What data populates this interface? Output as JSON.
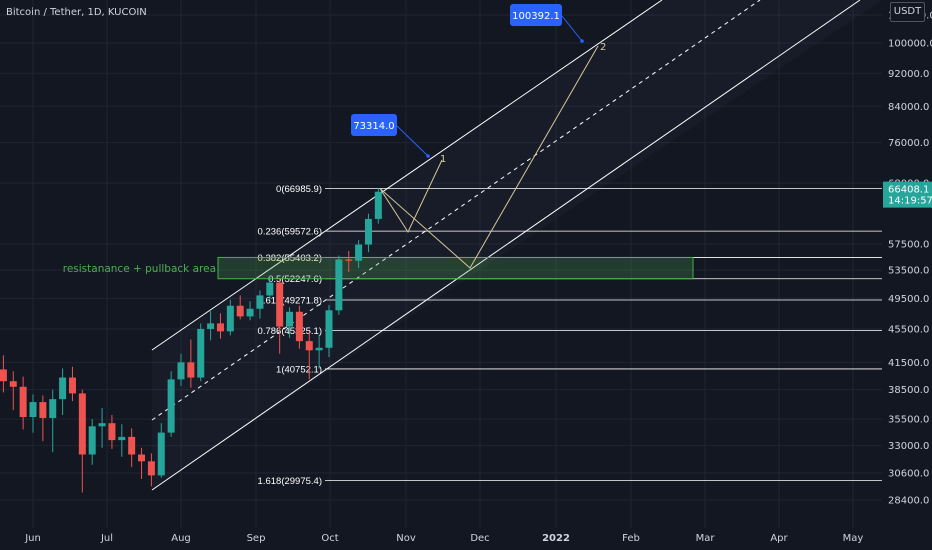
{
  "window": {
    "title": "Bitcoin / Tether, 1D, KUCOIN",
    "currency": "USDT"
  },
  "colors": {
    "background": "#131722",
    "bull": "#26a69a",
    "bear": "#ef5350",
    "channel": "#ffffff",
    "path": "#d4c99a",
    "zone": "#4caf50",
    "callout": "#2962ff"
  },
  "chart_data": {
    "type": "candlestick",
    "x_ticks": [
      "Jun",
      "Jul",
      "Aug",
      "Sep",
      "Oct",
      "Nov",
      "Dec",
      "2022",
      "Feb",
      "Mar",
      "Apr",
      "May"
    ],
    "y_ticks": [
      28400,
      30600,
      33000,
      35500,
      38500,
      41500,
      45500,
      49500,
      53500,
      57500,
      68000,
      76000,
      84000,
      92000,
      100000,
      108000
    ],
    "y_scale": "log",
    "ylim": [
      27400,
      110000
    ],
    "last_price": "66408.1",
    "countdown": "14:19:57",
    "fib_levels": [
      {
        "ratio": 0,
        "price": 66985.9,
        "label": "0(66985.9)"
      },
      {
        "ratio": 0.236,
        "price": 59572.6,
        "label": "0.236(59572.6)"
      },
      {
        "ratio": 0.382,
        "price": 55403.2,
        "label": "0.382(55403.2)"
      },
      {
        "ratio": 0.5,
        "price": 52247.6,
        "label": "0.5(52247.6)"
      },
      {
        "ratio": 0.618,
        "price": 49271.8,
        "label": "0.618(49271.8)"
      },
      {
        "ratio": 0.786,
        "price": 45325.1,
        "label": "0.786(45325.1)"
      },
      {
        "ratio": 1,
        "price": 40752.1,
        "label": "1(40752.1)"
      },
      {
        "ratio": 1.618,
        "price": 29975.4,
        "label": "1.618(29975.4)"
      }
    ],
    "zone": {
      "label": "resistanance + pullback area",
      "top": 55403.2,
      "bottom": 52247.6
    },
    "targets": [
      {
        "label": "73314.0",
        "wave": "1",
        "price": 73314.0
      },
      {
        "label": "100392.1",
        "wave": "2",
        "price": 100392.1
      }
    ],
    "candles": [
      {
        "date": "2021-05-20",
        "o": 40700,
        "h": 42300,
        "l": 38200,
        "c": 39400
      },
      {
        "date": "2021-05-24",
        "o": 39400,
        "h": 40500,
        "l": 36400,
        "c": 38800
      },
      {
        "date": "2021-05-28",
        "o": 38800,
        "h": 39900,
        "l": 34500,
        "c": 35700
      },
      {
        "date": "2021-06-01",
        "o": 35700,
        "h": 38000,
        "l": 34200,
        "c": 37200
      },
      {
        "date": "2021-06-05",
        "o": 37200,
        "h": 37900,
        "l": 33400,
        "c": 35600
      },
      {
        "date": "2021-06-09",
        "o": 35600,
        "h": 38500,
        "l": 32400,
        "c": 37500
      },
      {
        "date": "2021-06-13",
        "o": 37500,
        "h": 40800,
        "l": 35900,
        "c": 39800
      },
      {
        "date": "2021-06-17",
        "o": 39800,
        "h": 41000,
        "l": 37300,
        "c": 38100
      },
      {
        "date": "2021-06-21",
        "o": 38100,
        "h": 38500,
        "l": 29000,
        "c": 32200
      },
      {
        "date": "2021-06-25",
        "o": 32200,
        "h": 35500,
        "l": 31300,
        "c": 34800
      },
      {
        "date": "2021-06-29",
        "o": 34800,
        "h": 36600,
        "l": 32800,
        "c": 35100
      },
      {
        "date": "2021-07-03",
        "o": 35100,
        "h": 35900,
        "l": 32700,
        "c": 33500
      },
      {
        "date": "2021-07-07",
        "o": 33500,
        "h": 35000,
        "l": 32000,
        "c": 33800
      },
      {
        "date": "2021-07-11",
        "o": 33800,
        "h": 34600,
        "l": 31100,
        "c": 32200
      },
      {
        "date": "2021-07-15",
        "o": 32200,
        "h": 32800,
        "l": 30100,
        "c": 31600
      },
      {
        "date": "2021-07-19",
        "o": 31600,
        "h": 32300,
        "l": 29500,
        "c": 30400
      },
      {
        "date": "2021-07-23",
        "o": 30400,
        "h": 35100,
        "l": 30200,
        "c": 34200
      },
      {
        "date": "2021-07-27",
        "o": 34200,
        "h": 40500,
        "l": 33800,
        "c": 39600
      },
      {
        "date": "2021-07-31",
        "o": 39600,
        "h": 42500,
        "l": 38900,
        "c": 41500
      },
      {
        "date": "2021-08-04",
        "o": 41500,
        "h": 44200,
        "l": 38700,
        "c": 39800
      },
      {
        "date": "2021-08-08",
        "o": 39800,
        "h": 46200,
        "l": 39400,
        "c": 45500
      },
      {
        "date": "2021-08-12",
        "o": 45500,
        "h": 47800,
        "l": 44100,
        "c": 46200
      },
      {
        "date": "2021-08-16",
        "o": 46200,
        "h": 47500,
        "l": 44300,
        "c": 45200
      },
      {
        "date": "2021-08-20",
        "o": 45200,
        "h": 49300,
        "l": 44700,
        "c": 48500
      },
      {
        "date": "2021-08-24",
        "o": 48500,
        "h": 49900,
        "l": 46700,
        "c": 47100
      },
      {
        "date": "2021-08-28",
        "o": 47100,
        "h": 49100,
        "l": 46600,
        "c": 48100
      },
      {
        "date": "2021-09-01",
        "o": 48100,
        "h": 50600,
        "l": 46800,
        "c": 49900
      },
      {
        "date": "2021-09-05",
        "o": 49900,
        "h": 52700,
        "l": 49300,
        "c": 51700
      },
      {
        "date": "2021-09-09",
        "o": 51700,
        "h": 52300,
        "l": 42500,
        "c": 45800
      },
      {
        "date": "2021-09-13",
        "o": 45800,
        "h": 48300,
        "l": 44400,
        "c": 47700
      },
      {
        "date": "2021-09-17",
        "o": 47700,
        "h": 48500,
        "l": 43100,
        "c": 44000
      },
      {
        "date": "2021-09-21",
        "o": 44000,
        "h": 45200,
        "l": 39600,
        "c": 42900
      },
      {
        "date": "2021-09-25",
        "o": 42900,
        "h": 44800,
        "l": 40800,
        "c": 43200
      },
      {
        "date": "2021-09-29",
        "o": 43200,
        "h": 48600,
        "l": 42100,
        "c": 47900
      },
      {
        "date": "2021-10-03",
        "o": 47900,
        "h": 55700,
        "l": 47300,
        "c": 55100
      },
      {
        "date": "2021-10-07",
        "o": 55100,
        "h": 56400,
        "l": 53200,
        "c": 54900
      },
      {
        "date": "2021-10-11",
        "o": 54900,
        "h": 58100,
        "l": 53800,
        "c": 57400
      },
      {
        "date": "2021-10-15",
        "o": 57400,
        "h": 62500,
        "l": 56200,
        "c": 61600
      },
      {
        "date": "2021-10-19",
        "o": 61600,
        "h": 67000,
        "l": 60800,
        "c": 66400
      }
    ]
  }
}
